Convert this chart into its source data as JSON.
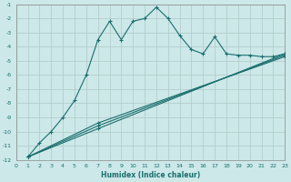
{
  "xlabel": "Humidex (Indice chaleur)",
  "bg_color": "#cce8e8",
  "grid_color": "#b0c8c8",
  "line_color": "#1a6e6e",
  "xlim": [
    0,
    23
  ],
  "ylim": [
    -12,
    -1
  ],
  "xticks": [
    0,
    1,
    2,
    3,
    4,
    5,
    6,
    7,
    8,
    9,
    10,
    11,
    12,
    13,
    14,
    15,
    16,
    17,
    18,
    19,
    20,
    21,
    22,
    23
  ],
  "yticks": [
    -12,
    -11,
    -10,
    -9,
    -8,
    -7,
    -6,
    -5,
    -4,
    -3,
    -2,
    -1
  ],
  "lines": [
    {
      "x": [
        1,
        2,
        3,
        4,
        5,
        6,
        7,
        8,
        9,
        10,
        11,
        12,
        13,
        14,
        15,
        16,
        17,
        18,
        19,
        20,
        21,
        22,
        23
      ],
      "y": [
        -11.8,
        -10.8,
        -10.0,
        -9.0,
        -7.8,
        -6.0,
        -3.5,
        -2.2,
        -3.5,
        -2.2,
        -2.0,
        -1.2,
        -2.0,
        -3.2,
        -4.2,
        -4.5,
        -3.3,
        -4.5,
        -4.6,
        -4.6,
        -4.7,
        -4.7,
        -4.5
      ]
    },
    {
      "x": [
        1,
        7,
        23
      ],
      "y": [
        -11.8,
        -9.4,
        -4.7
      ]
    },
    {
      "x": [
        1,
        7,
        23
      ],
      "y": [
        -11.8,
        -9.6,
        -4.6
      ]
    },
    {
      "x": [
        1,
        7,
        23
      ],
      "y": [
        -11.8,
        -9.8,
        -4.5
      ]
    }
  ]
}
